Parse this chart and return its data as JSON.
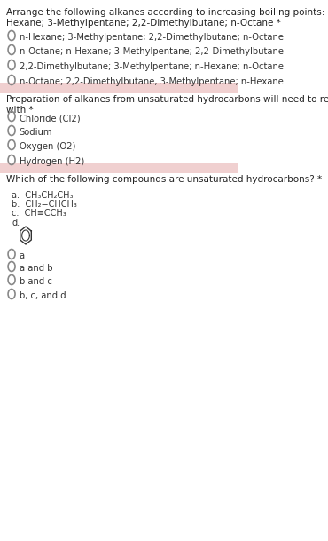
{
  "bg_color": "#ffffff",
  "separator_color": "#f0d0d0",
  "text_color": "#333333",
  "question1": {
    "question": "Arrange the following alkanes according to increasing boiling points: n-\nHexane; 3-Methylpentane; 2,2-Dimethylbutane; n-Octane *",
    "options": [
      "n-Hexane; 3-Methylpentane; 2,2-Dimethylbutane; n-Octane",
      "n-Octane; n-Hexane; 3-Methylpentane; 2,2-Dimethylbutane",
      "2,2-Dimethylbutane; 3-Methylpentane; n-Hexane; n-Octane",
      "n-Octane; 2,2-Dimethylbutane, 3-Methylpentane; n-Hexane"
    ]
  },
  "question2": {
    "question": "Preparation of alkanes from unsaturated hydrocarbons will need to react\nwith *",
    "options": [
      "Chloride (Cl2)",
      "Sodium",
      "Oxygen (O2)",
      "Hydrogen (H2)"
    ]
  },
  "question3": {
    "question": "Which of the following compounds are unsaturated hydrocarbons? *",
    "compounds": [
      "a.  CH₃CH₂CH₃",
      "b.  CH₂=CHCH₃",
      "c.  CH≡CCH₃",
      "d."
    ],
    "options": [
      "a",
      "a and b",
      "b and c",
      "b, c, and d"
    ]
  }
}
